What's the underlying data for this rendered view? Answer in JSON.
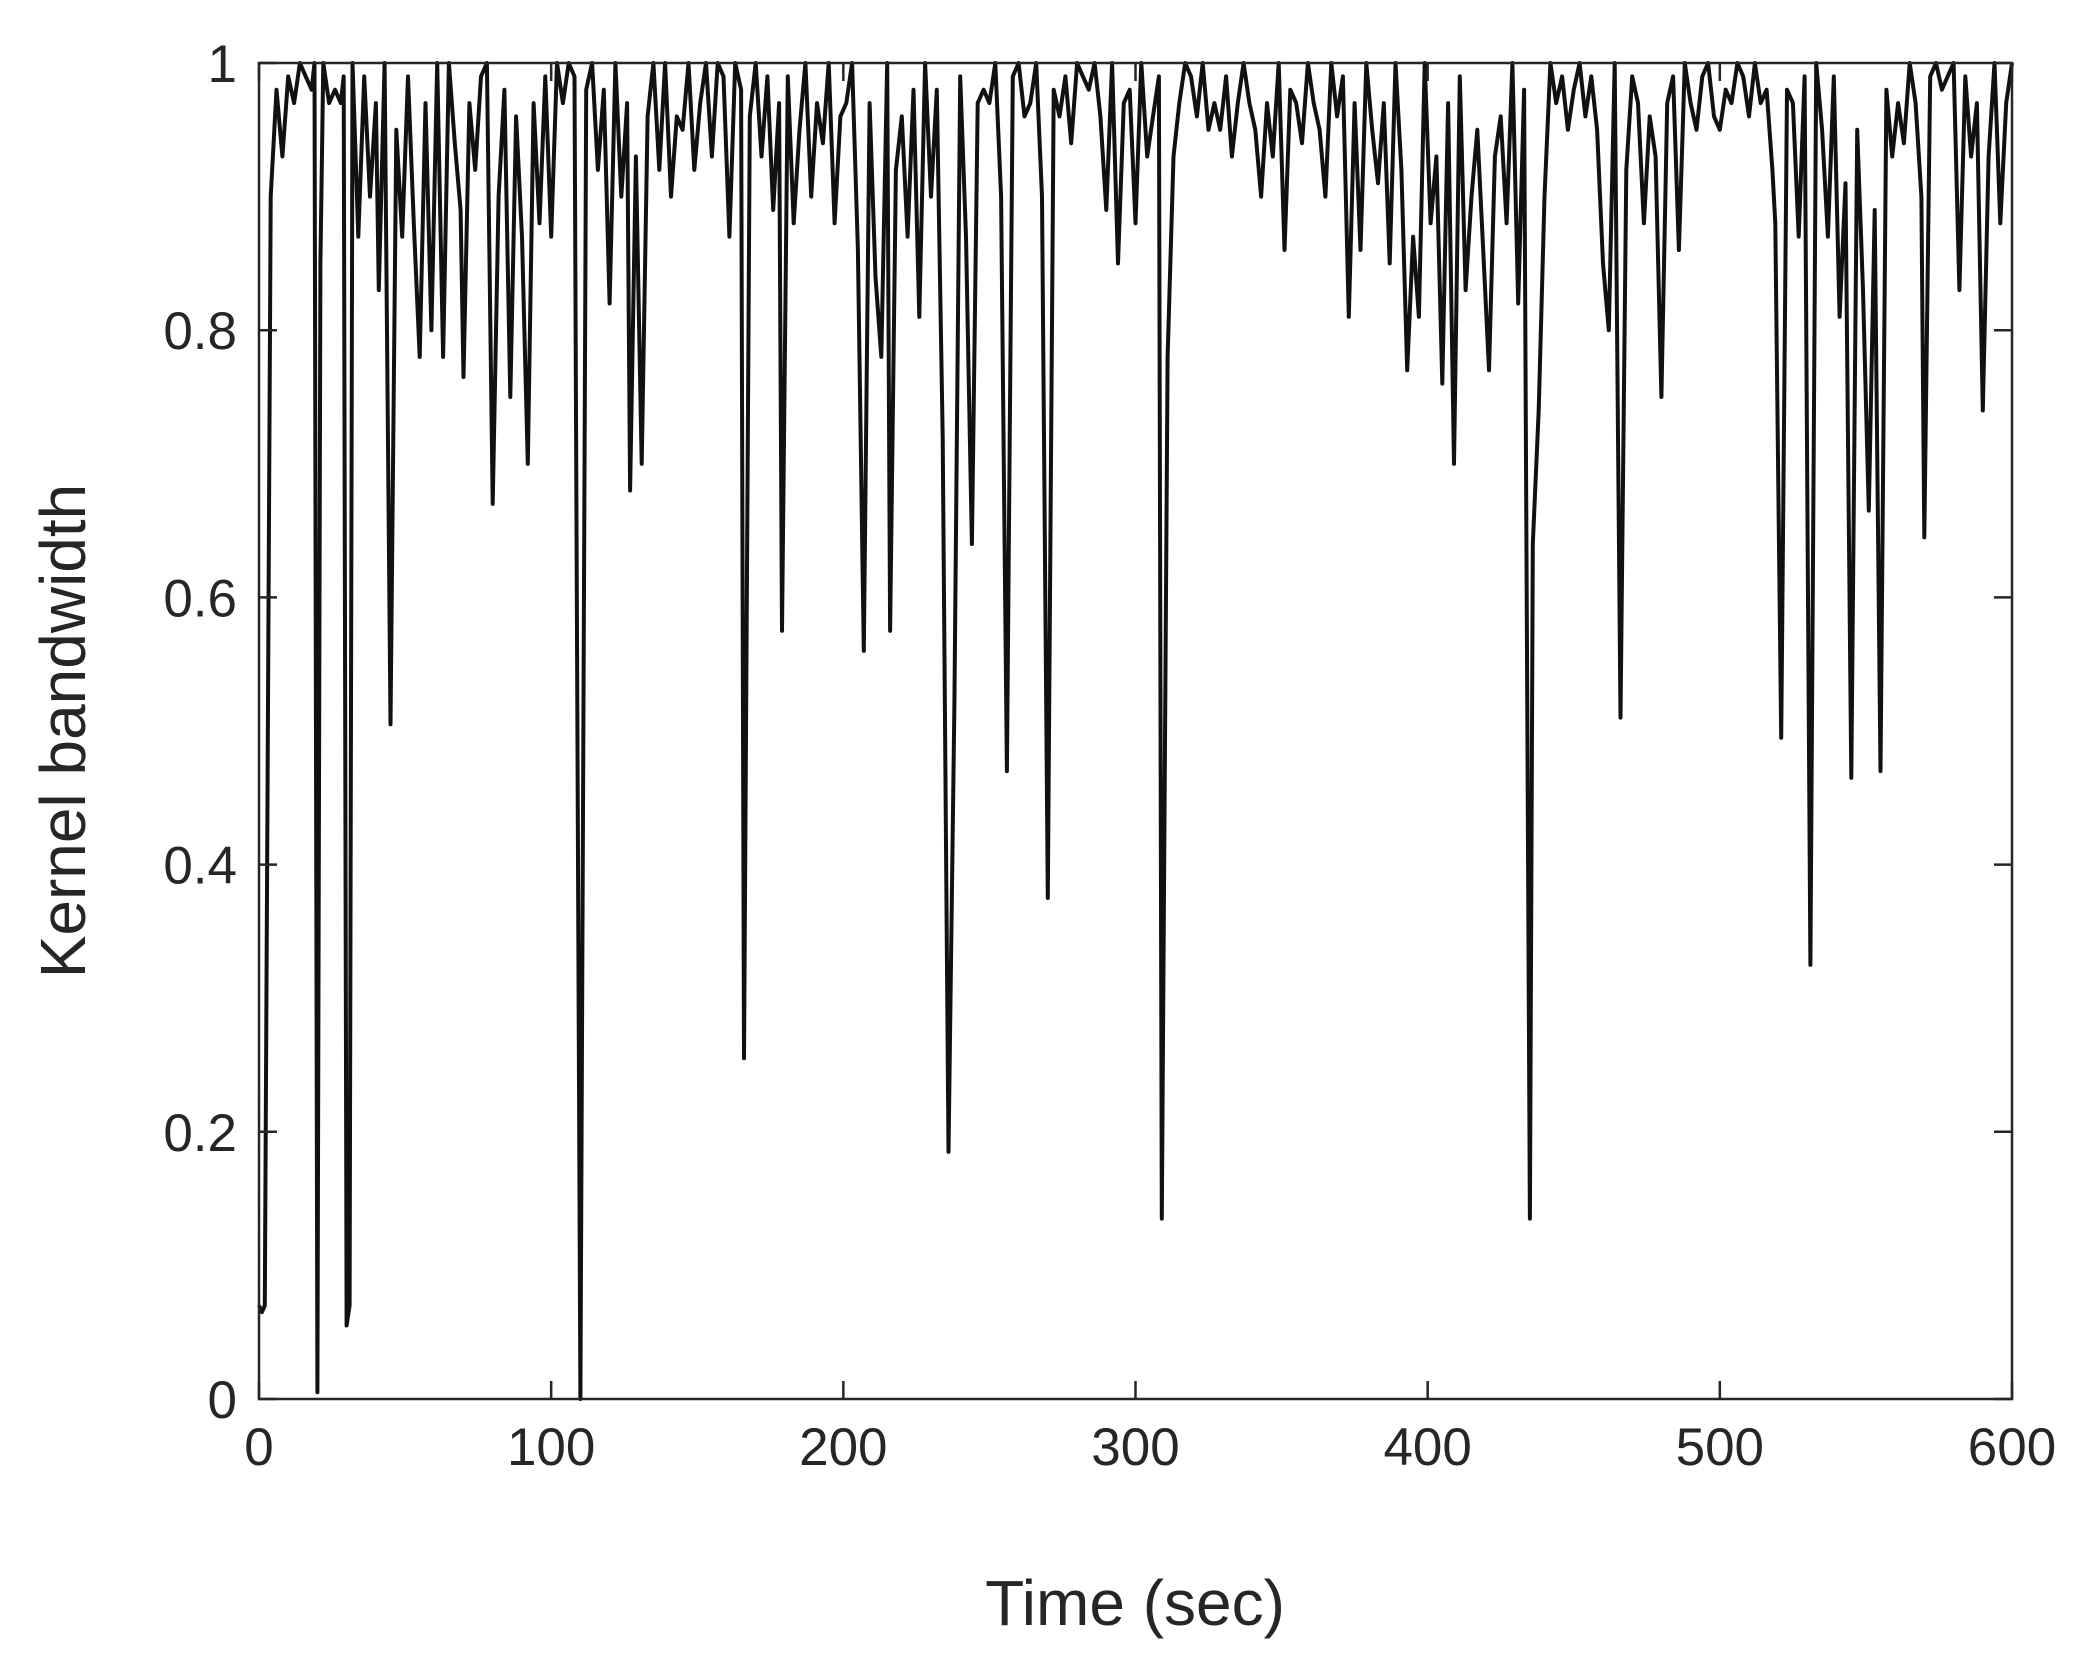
{
  "chart_data": {
    "type": "line",
    "xlabel": "Time (sec)",
    "ylabel": "Kernel bandwidth",
    "xlim": [
      0,
      600
    ],
    "ylim": [
      0,
      1
    ],
    "xticks": [
      0,
      100,
      200,
      300,
      400,
      500,
      600
    ],
    "yticks": [
      0,
      0.2,
      0.4,
      0.6,
      0.8,
      1
    ],
    "series": [
      {
        "color": "#111111",
        "x": [
          0,
          1,
          2,
          4,
          6,
          8,
          10,
          12,
          14,
          16,
          18,
          19,
          20,
          21,
          22,
          24,
          26,
          28,
          29,
          30,
          31,
          32,
          34,
          36,
          38,
          40,
          41,
          43,
          45,
          47,
          49,
          51,
          53,
          55,
          57,
          59,
          61,
          63,
          65,
          67,
          69,
          70,
          72,
          74,
          76,
          78,
          80,
          82,
          84,
          86,
          88,
          90,
          92,
          94,
          96,
          98,
          100,
          102,
          104,
          106,
          108,
          110,
          112,
          114,
          116,
          118,
          120,
          122,
          124,
          126,
          127,
          129,
          131,
          133,
          135,
          137,
          139,
          141,
          143,
          145,
          147,
          149,
          151,
          153,
          155,
          157,
          159,
          161,
          163,
          165,
          166,
          168,
          170,
          172,
          174,
          176,
          178,
          179,
          181,
          183,
          185,
          187,
          189,
          191,
          193,
          195,
          197,
          199,
          201,
          203,
          205,
          207,
          209,
          211,
          213,
          215,
          216,
          218,
          220,
          222,
          224,
          226,
          228,
          230,
          232,
          234,
          236,
          238,
          240,
          242,
          244,
          246,
          248,
          250,
          252,
          254,
          256,
          258,
          260,
          262,
          264,
          266,
          268,
          270,
          272,
          274,
          276,
          278,
          280,
          282,
          284,
          286,
          288,
          290,
          292,
          294,
          296,
          298,
          300,
          302,
          304,
          306,
          308,
          309,
          311,
          313,
          315,
          317,
          319,
          321,
          323,
          325,
          327,
          329,
          331,
          333,
          335,
          337,
          339,
          341,
          343,
          345,
          347,
          349,
          351,
          353,
          355,
          357,
          359,
          361,
          363,
          365,
          367,
          369,
          371,
          373,
          375,
          377,
          379,
          381,
          383,
          385,
          387,
          389,
          391,
          393,
          395,
          397,
          399,
          401,
          403,
          405,
          407,
          409,
          411,
          413,
          415,
          417,
          419,
          421,
          423,
          425,
          427,
          429,
          431,
          433,
          435,
          436,
          438,
          440,
          442,
          444,
          446,
          448,
          450,
          452,
          454,
          456,
          458,
          460,
          462,
          464,
          466,
          468,
          470,
          472,
          474,
          476,
          478,
          480,
          482,
          484,
          486,
          488,
          490,
          492,
          494,
          496,
          498,
          500,
          502,
          504,
          506,
          508,
          510,
          512,
          514,
          516,
          518,
          519,
          521,
          523,
          525,
          527,
          529,
          531,
          533,
          535,
          537,
          539,
          541,
          543,
          545,
          547,
          549,
          551,
          553,
          555,
          557,
          559,
          561,
          563,
          565,
          567,
          569,
          570,
          572,
          574,
          576,
          578,
          580,
          582,
          584,
          586,
          588,
          590,
          592,
          594,
          596,
          598,
          600
        ],
        "values": [
          0.07,
          0.065,
          0.07,
          0.9,
          0.98,
          0.93,
          0.99,
          0.97,
          1,
          0.99,
          0.98,
          1,
          0.005,
          0.85,
          1,
          0.97,
          0.98,
          0.97,
          0.99,
          0.055,
          0.07,
          1,
          0.87,
          0.99,
          0.9,
          0.97,
          0.83,
          1,
          0.505,
          0.95,
          0.87,
          0.99,
          0.88,
          0.78,
          0.97,
          0.8,
          1,
          0.78,
          1,
          0.94,
          0.89,
          0.765,
          0.97,
          0.92,
          0.99,
          1,
          0.67,
          0.9,
          0.98,
          0.75,
          0.96,
          0.87,
          0.7,
          0.97,
          0.88,
          0.99,
          0.87,
          1,
          0.97,
          1,
          0.99,
          0,
          0.98,
          1,
          0.92,
          0.98,
          0.82,
          1,
          0.9,
          0.97,
          0.68,
          0.93,
          0.7,
          0.96,
          1,
          0.92,
          1,
          0.9,
          0.96,
          0.95,
          1,
          0.92,
          0.97,
          1,
          0.93,
          1,
          0.99,
          0.87,
          1,
          0.98,
          0.255,
          0.96,
          1,
          0.93,
          0.99,
          0.89,
          0.97,
          0.575,
          0.99,
          0.88,
          0.95,
          1,
          0.9,
          0.97,
          0.94,
          1,
          0.88,
          0.96,
          0.97,
          1,
          0.86,
          0.56,
          0.97,
          0.84,
          0.78,
          1,
          0.575,
          0.92,
          0.96,
          0.87,
          0.98,
          0.81,
          1,
          0.9,
          0.98,
          0.72,
          0.185,
          0.52,
          0.99,
          0.87,
          0.64,
          0.97,
          0.98,
          0.97,
          1,
          0.9,
          0.47,
          0.99,
          1,
          0.96,
          0.97,
          1,
          0.9,
          0.375,
          0.98,
          0.96,
          0.99,
          0.94,
          1,
          0.99,
          0.98,
          1,
          0.96,
          0.89,
          1,
          0.85,
          0.97,
          0.98,
          0.88,
          1,
          0.93,
          0.96,
          0.99,
          0.135,
          0.78,
          0.93,
          0.97,
          1,
          0.99,
          0.96,
          1,
          0.95,
          0.97,
          0.95,
          0.99,
          0.93,
          0.97,
          1,
          0.97,
          0.95,
          0.9,
          0.97,
          0.93,
          1,
          0.86,
          0.98,
          0.97,
          0.94,
          1,
          0.97,
          0.95,
          0.9,
          1,
          0.96,
          0.99,
          0.81,
          0.97,
          0.86,
          1,
          0.95,
          0.91,
          0.97,
          0.85,
          1,
          0.92,
          0.77,
          0.87,
          0.81,
          1,
          0.88,
          0.93,
          0.76,
          0.97,
          0.7,
          0.99,
          0.83,
          0.9,
          0.95,
          0.86,
          0.77,
          0.93,
          0.96,
          0.88,
          1,
          0.82,
          0.98,
          0.135,
          0.64,
          0.74,
          0.9,
          1,
          0.97,
          0.99,
          0.95,
          0.98,
          1,
          0.96,
          0.99,
          0.95,
          0.85,
          0.8,
          1,
          0.51,
          0.92,
          0.99,
          0.97,
          0.88,
          0.96,
          0.93,
          0.75,
          0.97,
          0.99,
          0.86,
          1,
          0.97,
          0.95,
          0.99,
          1,
          0.96,
          0.95,
          0.98,
          0.97,
          1,
          0.99,
          0.96,
          1,
          0.97,
          0.98,
          0.92,
          0.88,
          0.495,
          0.98,
          0.97,
          0.87,
          0.99,
          0.325,
          1,
          0.95,
          0.87,
          0.99,
          0.81,
          0.91,
          0.465,
          0.95,
          0.83,
          0.665,
          0.89,
          0.47,
          0.98,
          0.93,
          0.97,
          0.94,
          1,
          0.97,
          0.9,
          0.645,
          0.99,
          1,
          0.98,
          0.99,
          1,
          0.83,
          0.99,
          0.93,
          0.97,
          0.74,
          0.93,
          1,
          0.88,
          0.97,
          1
        ]
      }
    ]
  }
}
